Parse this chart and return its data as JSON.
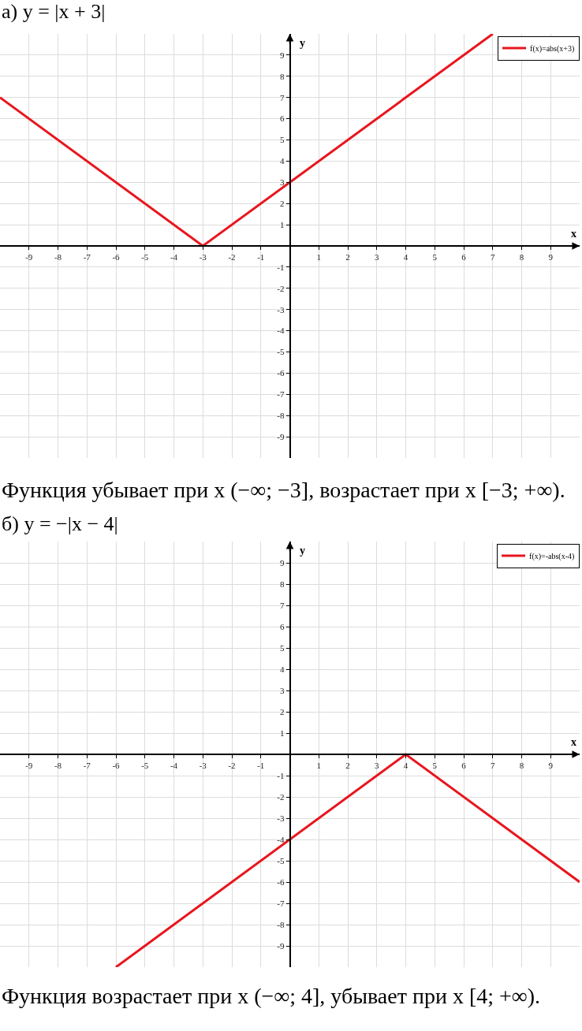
{
  "chart_data": [
    {
      "type": "line",
      "title": "а) y = |x + 3|",
      "xlabel": "x",
      "ylabel": "y",
      "x": [
        -10,
        -3,
        7
      ],
      "series": [
        {
          "name": "f(x)=abs(x+3)",
          "color": "#e8161d",
          "values": [
            7,
            0,
            10
          ]
        }
      ],
      "xlim": [
        -10,
        10
      ],
      "ylim": [
        -10,
        10
      ],
      "xticks": [
        -9,
        -8,
        -7,
        -6,
        -5,
        -4,
        -3,
        -2,
        -1,
        1,
        2,
        3,
        4,
        5,
        6,
        7,
        8,
        9
      ],
      "yticks": [
        -9,
        -8,
        -7,
        -6,
        -5,
        -4,
        -3,
        -2,
        -1,
        1,
        2,
        3,
        4,
        5,
        6,
        7,
        8,
        9
      ],
      "grid": true,
      "legend": "top right",
      "line_style": "solid",
      "annotations": [
        "Функция убывает при x (−∞; −3], возрастает при x [−3; +∞)."
      ]
    },
    {
      "type": "line",
      "title": "б) y = −|x − 4|",
      "xlabel": "x",
      "ylabel": "y",
      "x": [
        -6,
        4,
        10
      ],
      "series": [
        {
          "name": "f(x)=-abs(x-4)",
          "color": "#e8161d",
          "values": [
            -10,
            0,
            -6
          ]
        }
      ],
      "xlim": [
        -10,
        10
      ],
      "ylim": [
        -10,
        10
      ],
      "xticks": [
        -9,
        -8,
        -7,
        -6,
        -5,
        -4,
        -3,
        -2,
        -1,
        1,
        2,
        3,
        4,
        5,
        6,
        7,
        8,
        9
      ],
      "yticks": [
        -9,
        -8,
        -7,
        -6,
        -5,
        -4,
        -3,
        -2,
        -1,
        1,
        2,
        3,
        4,
        5,
        6,
        7,
        8,
        9
      ],
      "grid": true,
      "legend": "top right",
      "line_style": "solid",
      "annotations": [
        "Функция возрастает при x (−∞; 4], убывает при x [4; +∞)."
      ]
    }
  ]
}
